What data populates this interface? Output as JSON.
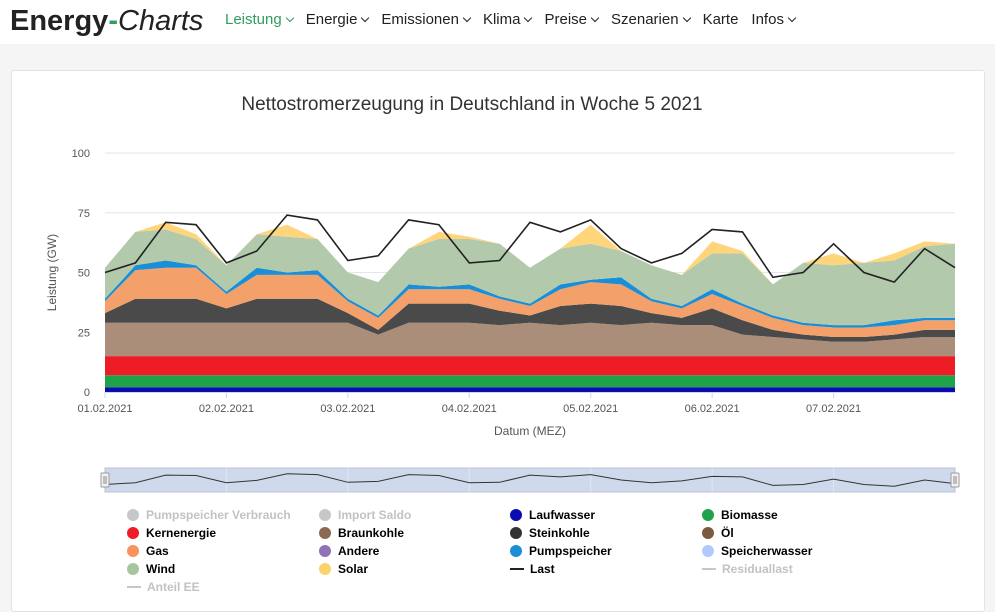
{
  "header": {
    "brand_part1": "Energy",
    "brand_dash": "-",
    "brand_part2": "Charts",
    "nav": [
      {
        "label": "Leistung",
        "dropdown": true,
        "active": true
      },
      {
        "label": "Energie",
        "dropdown": true
      },
      {
        "label": "Emissionen",
        "dropdown": true
      },
      {
        "label": "Klima",
        "dropdown": true
      },
      {
        "label": "Preise",
        "dropdown": true
      },
      {
        "label": "Szenarien",
        "dropdown": true
      },
      {
        "label": "Karte",
        "dropdown": false
      },
      {
        "label": "Infos",
        "dropdown": true
      }
    ]
  },
  "chart_data": {
    "type": "area",
    "stacked": true,
    "title": "Nettostromerzeugung in Deutschland in Woche 5 2021",
    "xlabel": "Datum (MEZ)",
    "ylabel": "Leistung (GW)",
    "ylim": [
      0,
      100
    ],
    "yticks": [
      0,
      25,
      50,
      75,
      100
    ],
    "x_tick_labels": [
      "01.02.2021",
      "02.02.2021",
      "03.02.2021",
      "04.02.2021",
      "05.02.2021",
      "06.02.2021",
      "07.02.2021"
    ],
    "x_hours": [
      0,
      6,
      12,
      18,
      24,
      30,
      36,
      42,
      48,
      54,
      60,
      66,
      72,
      78,
      84,
      90,
      96,
      102,
      108,
      114,
      120,
      126,
      132,
      138,
      144,
      150,
      156,
      162,
      168
    ],
    "series": [
      {
        "name": "Laufwasser",
        "color": "#0b0bb3",
        "values": [
          2,
          2,
          2,
          2,
          2,
          2,
          2,
          2,
          2,
          2,
          2,
          2,
          2,
          2,
          2,
          2,
          2,
          2,
          2,
          2,
          2,
          2,
          2,
          2,
          2,
          2,
          2,
          2,
          2
        ]
      },
      {
        "name": "Biomasse",
        "color": "#1fa34a",
        "values": [
          5,
          5,
          5,
          5,
          5,
          5,
          5,
          5,
          5,
          5,
          5,
          5,
          5,
          5,
          5,
          5,
          5,
          5,
          5,
          5,
          5,
          5,
          5,
          5,
          5,
          5,
          5,
          5,
          5
        ]
      },
      {
        "name": "Kernenergie",
        "color": "#ee1c25",
        "values": [
          8,
          8,
          8,
          8,
          8,
          8,
          8,
          8,
          8,
          8,
          8,
          8,
          8,
          8,
          8,
          8,
          8,
          8,
          8,
          8,
          8,
          8,
          8,
          8,
          8,
          8,
          8,
          8,
          8
        ]
      },
      {
        "name": "Braunkohle",
        "color": "#ab8e7a",
        "values": [
          14,
          14,
          14,
          14,
          14,
          14,
          14,
          14,
          14,
          9,
          14,
          14,
          14,
          13,
          14,
          13,
          14,
          13,
          14,
          13,
          13,
          9,
          8,
          7,
          6,
          6,
          7,
          8,
          8
        ]
      },
      {
        "name": "Steinkohle",
        "color": "#4a4a4a",
        "values": [
          4,
          10,
          10,
          10,
          6,
          10,
          10,
          10,
          4,
          2,
          8,
          8,
          8,
          6,
          3,
          8,
          8,
          8,
          4,
          3,
          7,
          6,
          3,
          2,
          2,
          2,
          2,
          3,
          3
        ]
      },
      {
        "name": "Gas",
        "color": "#f4a06a",
        "values": [
          5,
          12,
          13,
          13,
          6,
          10,
          10,
          10,
          5,
          5,
          6,
          6,
          6,
          5,
          4,
          7,
          9,
          9,
          5,
          4,
          6,
          6,
          5,
          4,
          4,
          4,
          4,
          4,
          4
        ]
      },
      {
        "name": "Pumpspeicher",
        "color": "#1a8fd8",
        "values": [
          1,
          2,
          3,
          1,
          1,
          3,
          1,
          2,
          1,
          1,
          2,
          1,
          2,
          1,
          1,
          2,
          1,
          3,
          1,
          1,
          2,
          1,
          1,
          1,
          1,
          1,
          2,
          1,
          1
        ]
      },
      {
        "name": "Wind",
        "color": "#b2c9ac",
        "values": [
          13,
          14,
          13,
          11,
          11,
          14,
          15,
          13,
          11,
          14,
          15,
          20,
          19,
          22,
          15,
          15,
          15,
          11,
          14,
          13,
          15,
          21,
          13,
          25,
          25,
          26,
          25,
          30,
          31
        ]
      },
      {
        "name": "Solar",
        "color": "#fed57b",
        "values": [
          0,
          0,
          3,
          2,
          0,
          0,
          5,
          0,
          0,
          0,
          0,
          3,
          1,
          0,
          0,
          0,
          8,
          0,
          0,
          0,
          5,
          1,
          0,
          0,
          5,
          0,
          3,
          2,
          0
        ]
      }
    ],
    "last": {
      "name": "Last",
      "color": "#222222",
      "values": [
        50,
        54,
        71,
        70,
        54,
        59,
        74,
        72,
        55,
        57,
        72,
        70,
        54,
        55,
        71,
        67,
        72,
        60,
        54,
        58,
        68,
        67,
        48,
        50,
        62,
        50,
        46,
        60,
        52
      ]
    },
    "legend": [
      {
        "label": "Pumpspeicher Verbrauch",
        "color": "#c7c7c7",
        "marker": "dot",
        "visible": false
      },
      {
        "label": "Import Saldo",
        "color": "#c7c7c7",
        "marker": "dot",
        "visible": false
      },
      {
        "label": "Laufwasser",
        "color": "#0b0bb3",
        "marker": "dot",
        "visible": true
      },
      {
        "label": "Biomasse",
        "color": "#1fa34a",
        "marker": "dot",
        "visible": true
      },
      {
        "label": "Kernenergie",
        "color": "#ee1c25",
        "marker": "dot",
        "visible": true
      },
      {
        "label": "Braunkohle",
        "color": "#8b6a54",
        "marker": "dot",
        "visible": true
      },
      {
        "label": "Steinkohle",
        "color": "#333333",
        "marker": "dot",
        "visible": true
      },
      {
        "label": "Öl",
        "color": "#7b5a40",
        "marker": "dot",
        "visible": true
      },
      {
        "label": "Gas",
        "color": "#f7935b",
        "marker": "dot",
        "visible": true
      },
      {
        "label": "Andere",
        "color": "#8e73b6",
        "marker": "dot",
        "visible": true
      },
      {
        "label": "Pumpspeicher",
        "color": "#1a8fd8",
        "marker": "dot",
        "visible": true
      },
      {
        "label": "Speicherwasser",
        "color": "#b3c8ff",
        "marker": "dot",
        "visible": true
      },
      {
        "label": "Wind",
        "color": "#a7c6a0",
        "marker": "dot",
        "visible": true
      },
      {
        "label": "Solar",
        "color": "#fcd36a",
        "marker": "dot",
        "visible": true
      },
      {
        "label": "Last",
        "color": "#222222",
        "marker": "line",
        "visible": true
      },
      {
        "label": "Residuallast",
        "color": "#c7c7c7",
        "marker": "line",
        "visible": false
      },
      {
        "label": "Anteil EE",
        "color": "#c7c7c7",
        "marker": "line",
        "visible": false
      }
    ]
  }
}
